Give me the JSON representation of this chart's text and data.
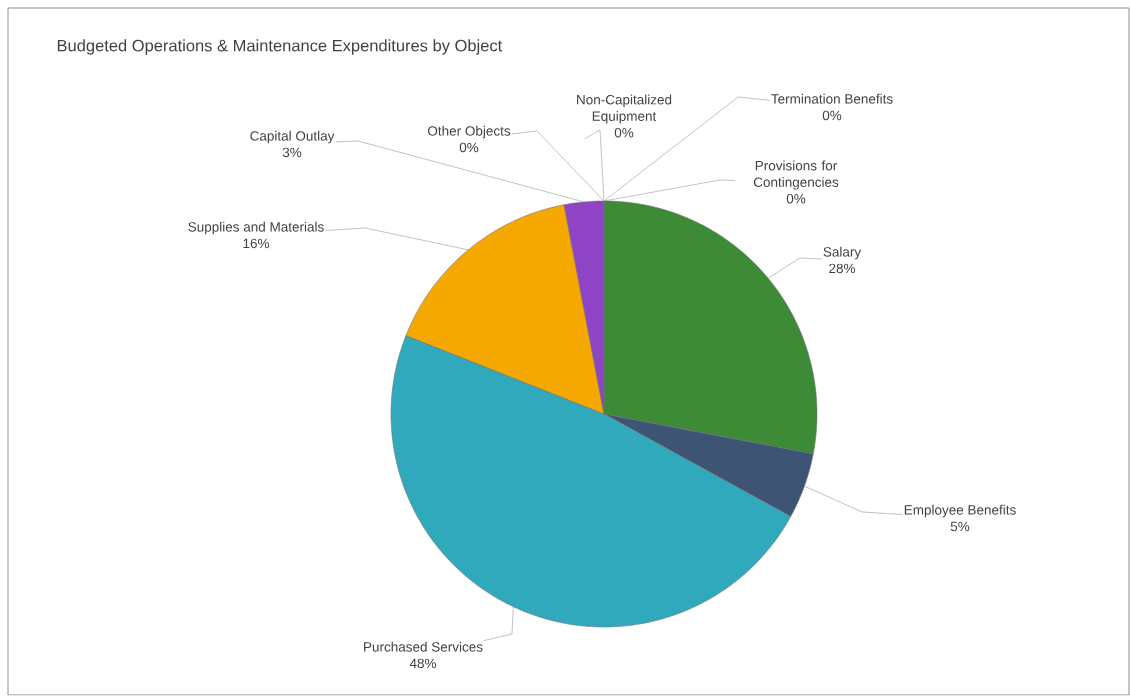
{
  "chart_data": {
    "type": "pie",
    "title": "Budgeted Operations & Maintenance Expenditures by Object",
    "categories": [
      "Salary",
      "Employee Benefits",
      "Purchased Services",
      "Supplies and Materials",
      "Capital Outlay",
      "Other Objects",
      "Non-Capitalized Equipment",
      "Termination Benefits",
      "Provisions for Contingencies"
    ],
    "values": [
      28,
      5,
      48,
      16,
      3,
      0,
      0,
      0,
      0
    ],
    "value_labels": [
      "28%",
      "5%",
      "48%",
      "16%",
      "3%",
      "0%",
      "0%",
      "0%",
      "0%"
    ],
    "colors": [
      "#3d8b37",
      "#3e5475",
      "#30a9bd",
      "#f5a800",
      "#8e44c4",
      "#c0392b",
      "#5c3a21",
      "#7f8c8d",
      "#2c3e50"
    ]
  }
}
